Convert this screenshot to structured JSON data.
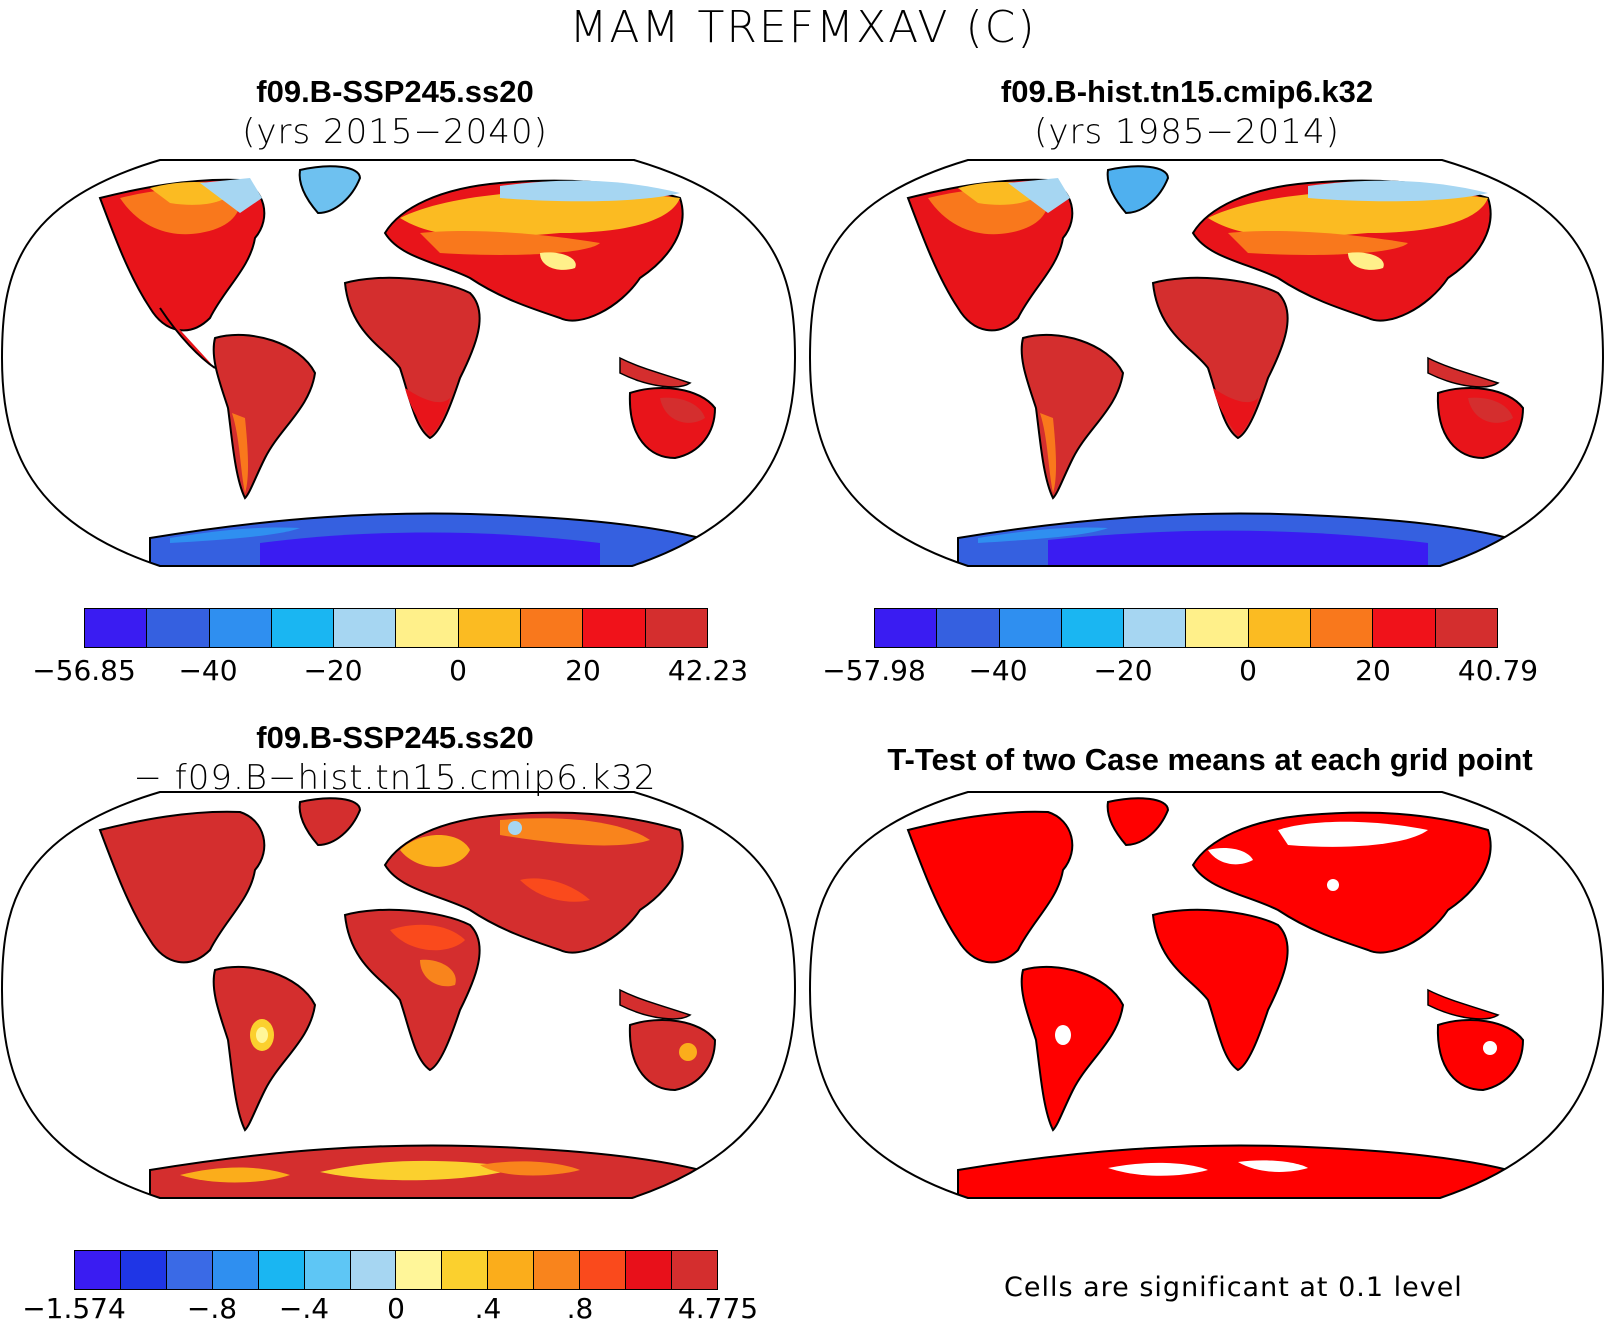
{
  "figure": {
    "title": "MAM TREFMXAV (C)"
  },
  "panels": {
    "top_left": {
      "line1": "f09.B-SSP245.ss20",
      "line2": "(yrs 2015−2040)",
      "colorbar": {
        "colors": [
          "#3a1cf2",
          "#3560e0",
          "#2f8ff0",
          "#1ab6f2",
          "#a6d6f2",
          "#fff08a",
          "#fbbb22",
          "#f9781c",
          "#f0121a",
          "#d42e2e"
        ],
        "labels": [
          "−56.85",
          "−40",
          "−20",
          "0",
          "20",
          "42.23"
        ]
      }
    },
    "top_right": {
      "line1": "f09.B-hist.tn15.cmip6.k32",
      "line2": "(yrs 1985−2014)",
      "colorbar": {
        "colors": [
          "#3a1cf2",
          "#3560e0",
          "#2f8ff0",
          "#1ab6f2",
          "#a6d6f2",
          "#fff08a",
          "#fbbb22",
          "#f9781c",
          "#f0121a",
          "#d42e2e"
        ],
        "labels": [
          "−57.98",
          "−40",
          "−20",
          "0",
          "20",
          "40.79"
        ]
      }
    },
    "bottom_left": {
      "line1": "f09.B-SSP245.ss20",
      "line2": "−  f09.B−hist.tn15.cmip6.k32",
      "colorbar": {
        "colors": [
          "#3a1cf2",
          "#1f36e6",
          "#3a6ae6",
          "#2f8ff0",
          "#1ab6f2",
          "#5ec6f5",
          "#a6d6f2",
          "#fff699",
          "#fbd02e",
          "#fbad1b",
          "#f9841c",
          "#fa4a1c",
          "#e8101a",
          "#d42e2e"
        ],
        "labels": [
          "−1.574",
          "−.8",
          "−.4",
          "0",
          ".4",
          ".8",
          "4.775"
        ]
      }
    },
    "bottom_right": {
      "title": "T-Test of two Case means at each grid point",
      "note": "Cells are significant at 0.1 level",
      "significant_color": "#ff0000"
    }
  }
}
